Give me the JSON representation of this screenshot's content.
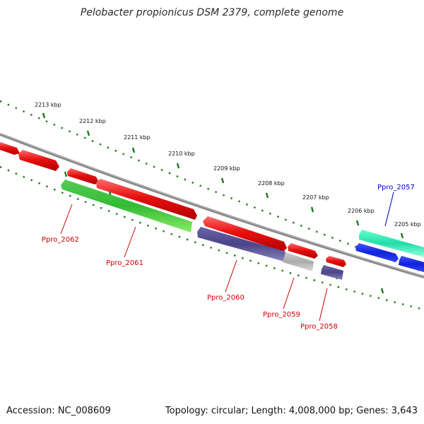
{
  "title": "Pelobacter propionicus DSM 2379, complete genome",
  "footer": {
    "accession": "Accession: NC_008609",
    "summary": "Topology: circular; Length: 4,008,000 bp; Genes: 3,643"
  },
  "colors": {
    "cds_red": "#e01010",
    "gene_green": "#33bb33",
    "gene_purple": "#4a4488",
    "gene_gray": "#aaaaaa",
    "gene_teal": "#22ddaa",
    "gene_blue": "#1122dd",
    "label_red": "#cc0000",
    "label_blue": "#0000cc",
    "tick_green": "#1a7a1a",
    "backbone": "#888888"
  },
  "scale": {
    "unit": "kbp",
    "ticks": [
      {
        "label": "2213 kbp"
      },
      {
        "label": "2212 kbp"
      },
      {
        "label": "2211 kbp"
      },
      {
        "label": "2210 kbp"
      },
      {
        "label": "2209 kbp"
      },
      {
        "label": "2208 kbp"
      },
      {
        "label": "2207 kbp"
      },
      {
        "label": "2206 kbp"
      },
      {
        "label": "2205 kbp"
      }
    ]
  },
  "gene_labels": [
    {
      "name": "Ppro_2062",
      "color": "label_red"
    },
    {
      "name": "Ppro_2061",
      "color": "label_red"
    },
    {
      "name": "Ppro_2060",
      "color": "label_red"
    },
    {
      "name": "Ppro_2059",
      "color": "label_red"
    },
    {
      "name": "Ppro_2058",
      "color": "label_red"
    },
    {
      "name": "Ppro_2057",
      "color": "label_blue"
    }
  ]
}
